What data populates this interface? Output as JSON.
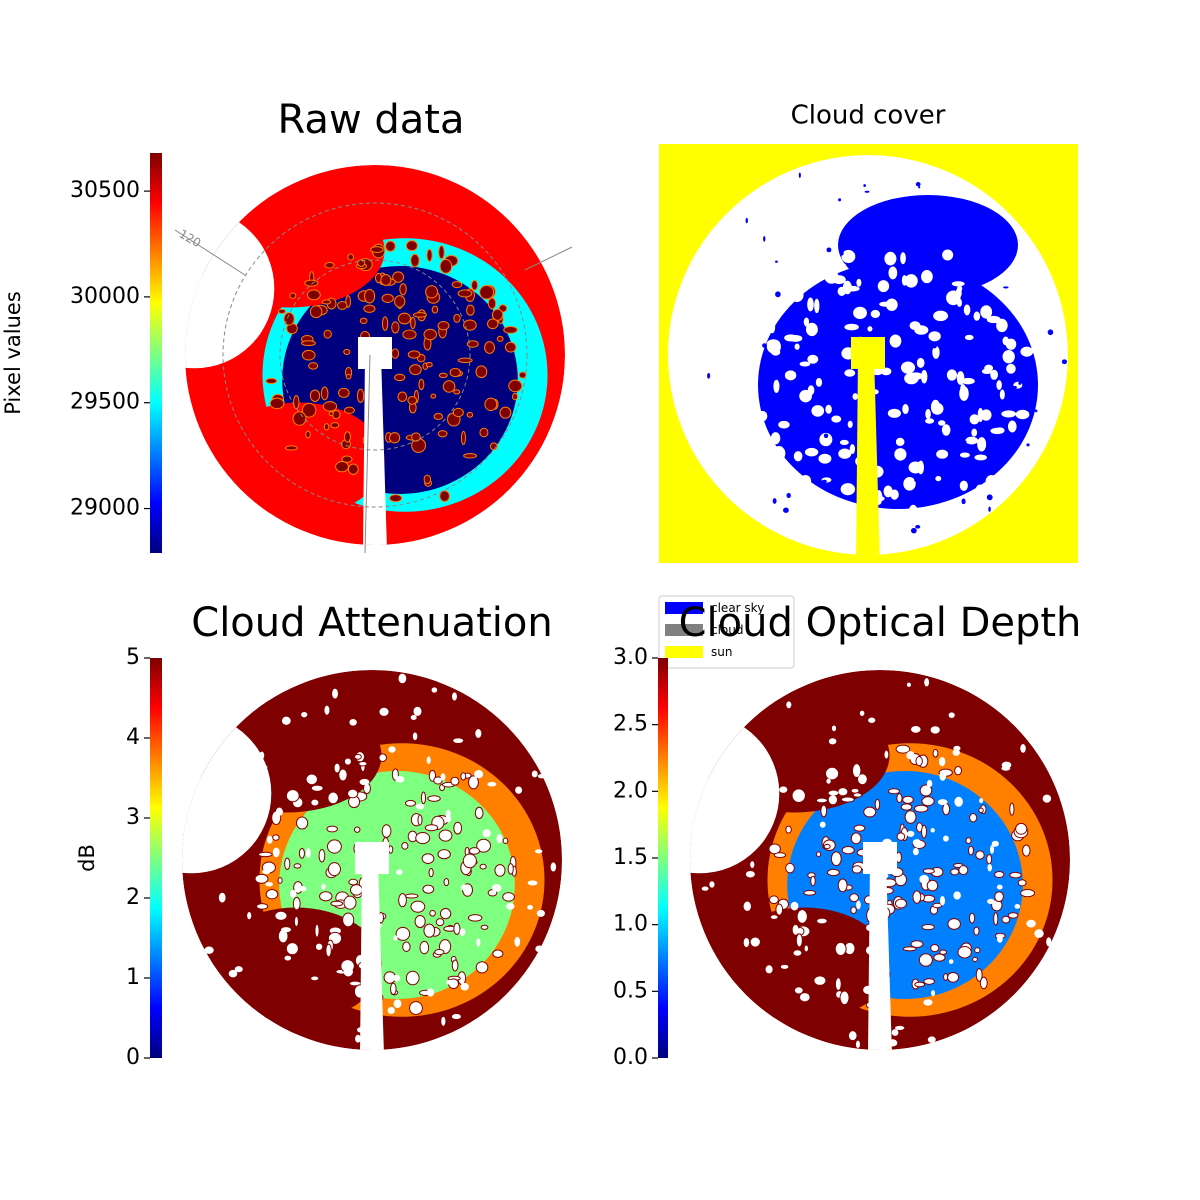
{
  "chart_data": [
    {
      "type": "image",
      "title": "Raw data",
      "ylabel": "Pixel values",
      "colormap": "jet",
      "ylim": [
        28790,
        30680
      ],
      "yticks": [
        29000,
        29500,
        30000,
        30500
      ],
      "annotations": [
        "120"
      ]
    },
    {
      "type": "classes",
      "title": "Cloud cover",
      "legend": [
        {
          "name": "clear sky",
          "color": "#0000ff"
        },
        {
          "name": "cloud",
          "color": "#808080"
        },
        {
          "name": "sun",
          "color": "#ffff00"
        }
      ]
    },
    {
      "type": "image",
      "title": "Cloud Attenuation",
      "ylabel": "dB",
      "colormap": "jet",
      "ylim": [
        0,
        5
      ],
      "yticks": [
        0,
        1,
        2,
        3,
        4,
        5
      ]
    },
    {
      "type": "image",
      "title": "Cloud Optical Depth",
      "colormap": "jet",
      "ylim": [
        0,
        3
      ],
      "yticks": [
        {
          "value": 0,
          "label": "0.0"
        },
        {
          "value": 0.5,
          "label": "0.5"
        },
        {
          "value": 1,
          "label": "1.0"
        },
        {
          "value": 1.5,
          "label": "1.5"
        },
        {
          "value": 2,
          "label": "2.0"
        },
        {
          "value": 2.5,
          "label": "2.5"
        },
        {
          "value": 3,
          "label": "3.0"
        }
      ]
    }
  ]
}
